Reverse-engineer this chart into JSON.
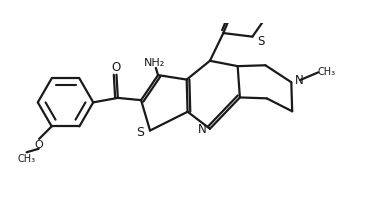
{
  "bg_color": "#ffffff",
  "line_color": "#1a1a1a",
  "line_width": 1.6,
  "figsize": [
    3.68,
    2.11
  ],
  "dpi": 100,
  "xlim": [
    -4.0,
    4.2
  ],
  "ylim": [
    -1.8,
    1.9
  ]
}
